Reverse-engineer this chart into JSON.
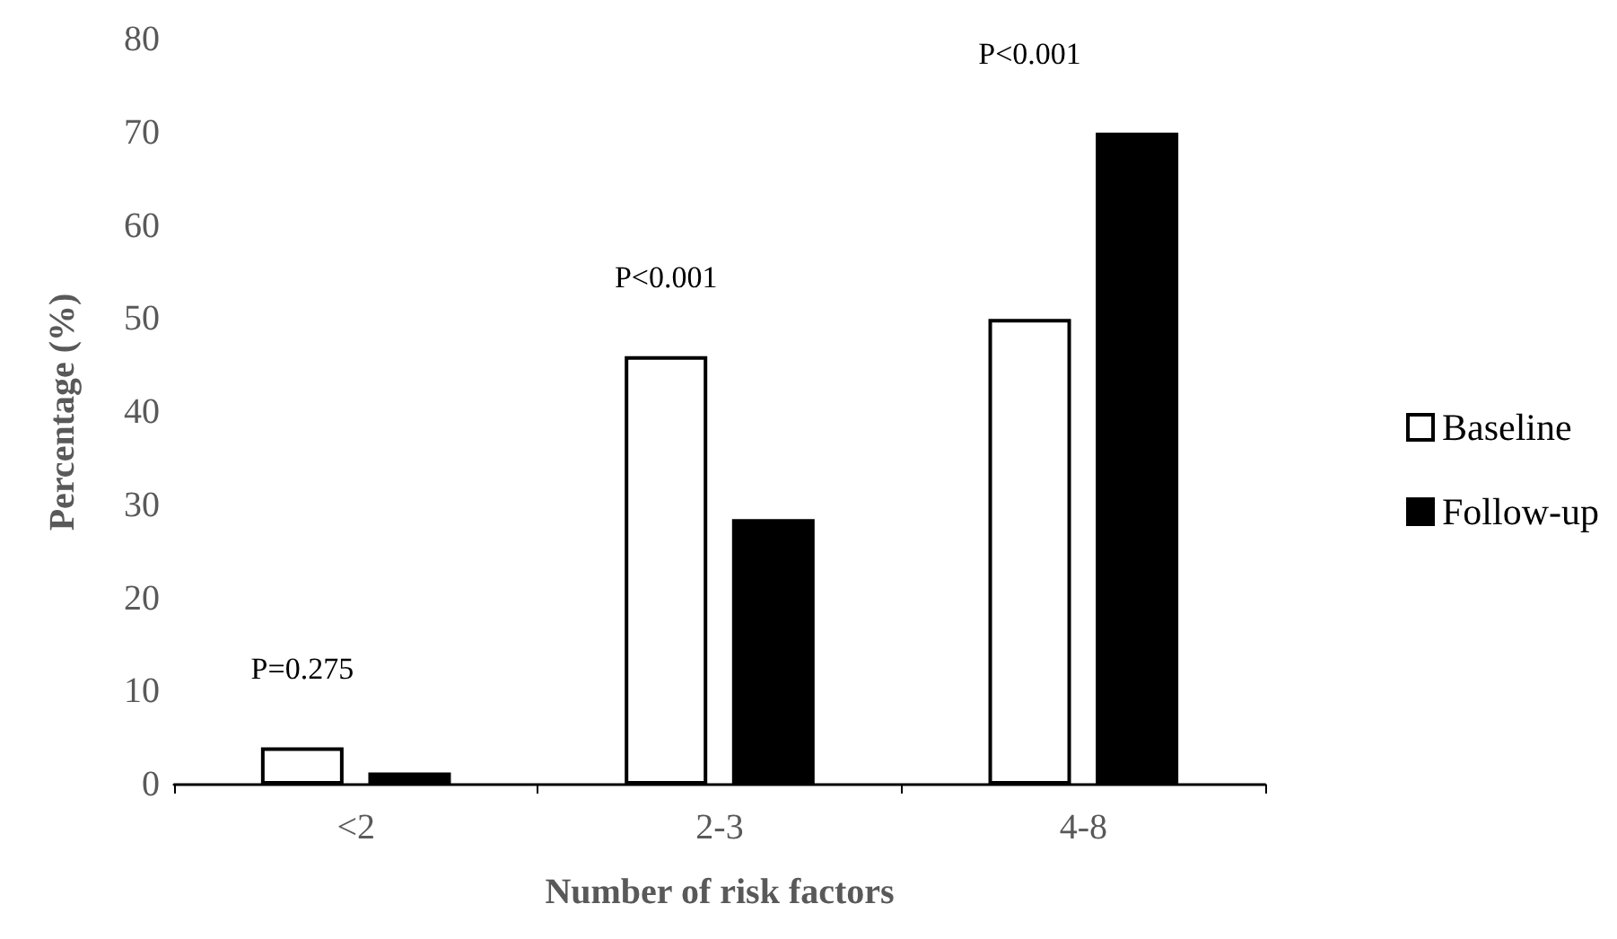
{
  "chart_data": {
    "type": "bar",
    "xlabel": "Number of risk factors",
    "ylabel": "Percentage (%)",
    "categories": [
      "<2",
      "2-3",
      "4-8"
    ],
    "series": [
      {
        "name": "Baseline",
        "color": "#ffffff",
        "values": [
          4,
          46,
          50
        ]
      },
      {
        "name": "Follow-up",
        "color": "#000000",
        "values": [
          1.3,
          28.5,
          70
        ]
      }
    ],
    "ylim": [
      0,
      80
    ],
    "yticks": [
      0,
      10,
      20,
      30,
      40,
      50,
      60,
      70,
      80
    ],
    "grid": false,
    "legend": "right",
    "annotations": [
      "P=0.275",
      "P<0.001",
      "P<0.001"
    ]
  }
}
